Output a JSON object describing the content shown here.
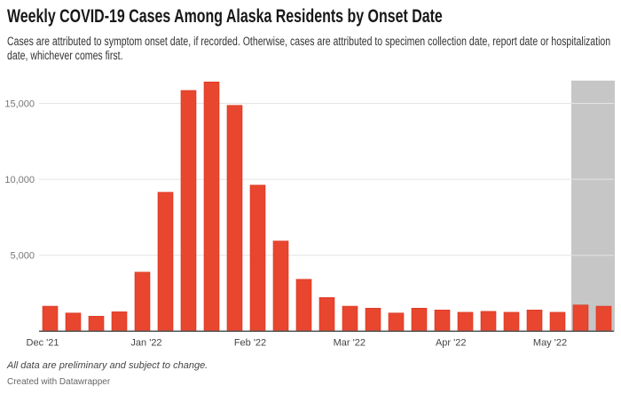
{
  "title": "Weekly COVID-19 Cases Among Alaska Residents by Onset Date",
  "subtitle": "Cases are attributed to symptom onset date, if recorded. Otherwise, cases are attributed to specimen collection date, report date or hospitalization date, whichever comes first.",
  "notes": "All data are preliminary and subject to change.",
  "credit": "Created with Datawrapper",
  "colors": {
    "bar": "#e8462f",
    "shade": "#c6c6c6",
    "grid": "#e4e4e4",
    "axis": "#555555"
  },
  "chart_data": {
    "type": "bar",
    "title": "Weekly COVID-19 Cases Among Alaska Residents by Onset Date",
    "xlabel": "",
    "ylabel": "",
    "ylim": [
      0,
      16500
    ],
    "grid": true,
    "yticks": [
      5000,
      10000,
      15000
    ],
    "ytick_labels": [
      "5,000",
      "10,000",
      "15,000"
    ],
    "x_tick_labels": [
      {
        "label": "Dec '21",
        "at_bar": -0.5
      },
      {
        "label": "Jan '22",
        "at_bar": 4
      },
      {
        "label": "Feb '22",
        "at_bar": 8.5
      },
      {
        "label": "Mar '22",
        "at_bar": 12.8
      },
      {
        "label": "Apr '22",
        "at_bar": 17.2
      },
      {
        "label": "May '22",
        "at_bar": 21.5
      }
    ],
    "values": [
      1650,
      1200,
      990,
      1280,
      3890,
      9150,
      15850,
      16410,
      14870,
      9620,
      5940,
      3420,
      2220,
      1650,
      1520,
      1200,
      1520,
      1400,
      1250,
      1310,
      1250,
      1400,
      1250,
      1730,
      1650
    ],
    "shaded_bars_from_index": 23,
    "shaded_note": "preliminary (incomplete) weeks"
  }
}
